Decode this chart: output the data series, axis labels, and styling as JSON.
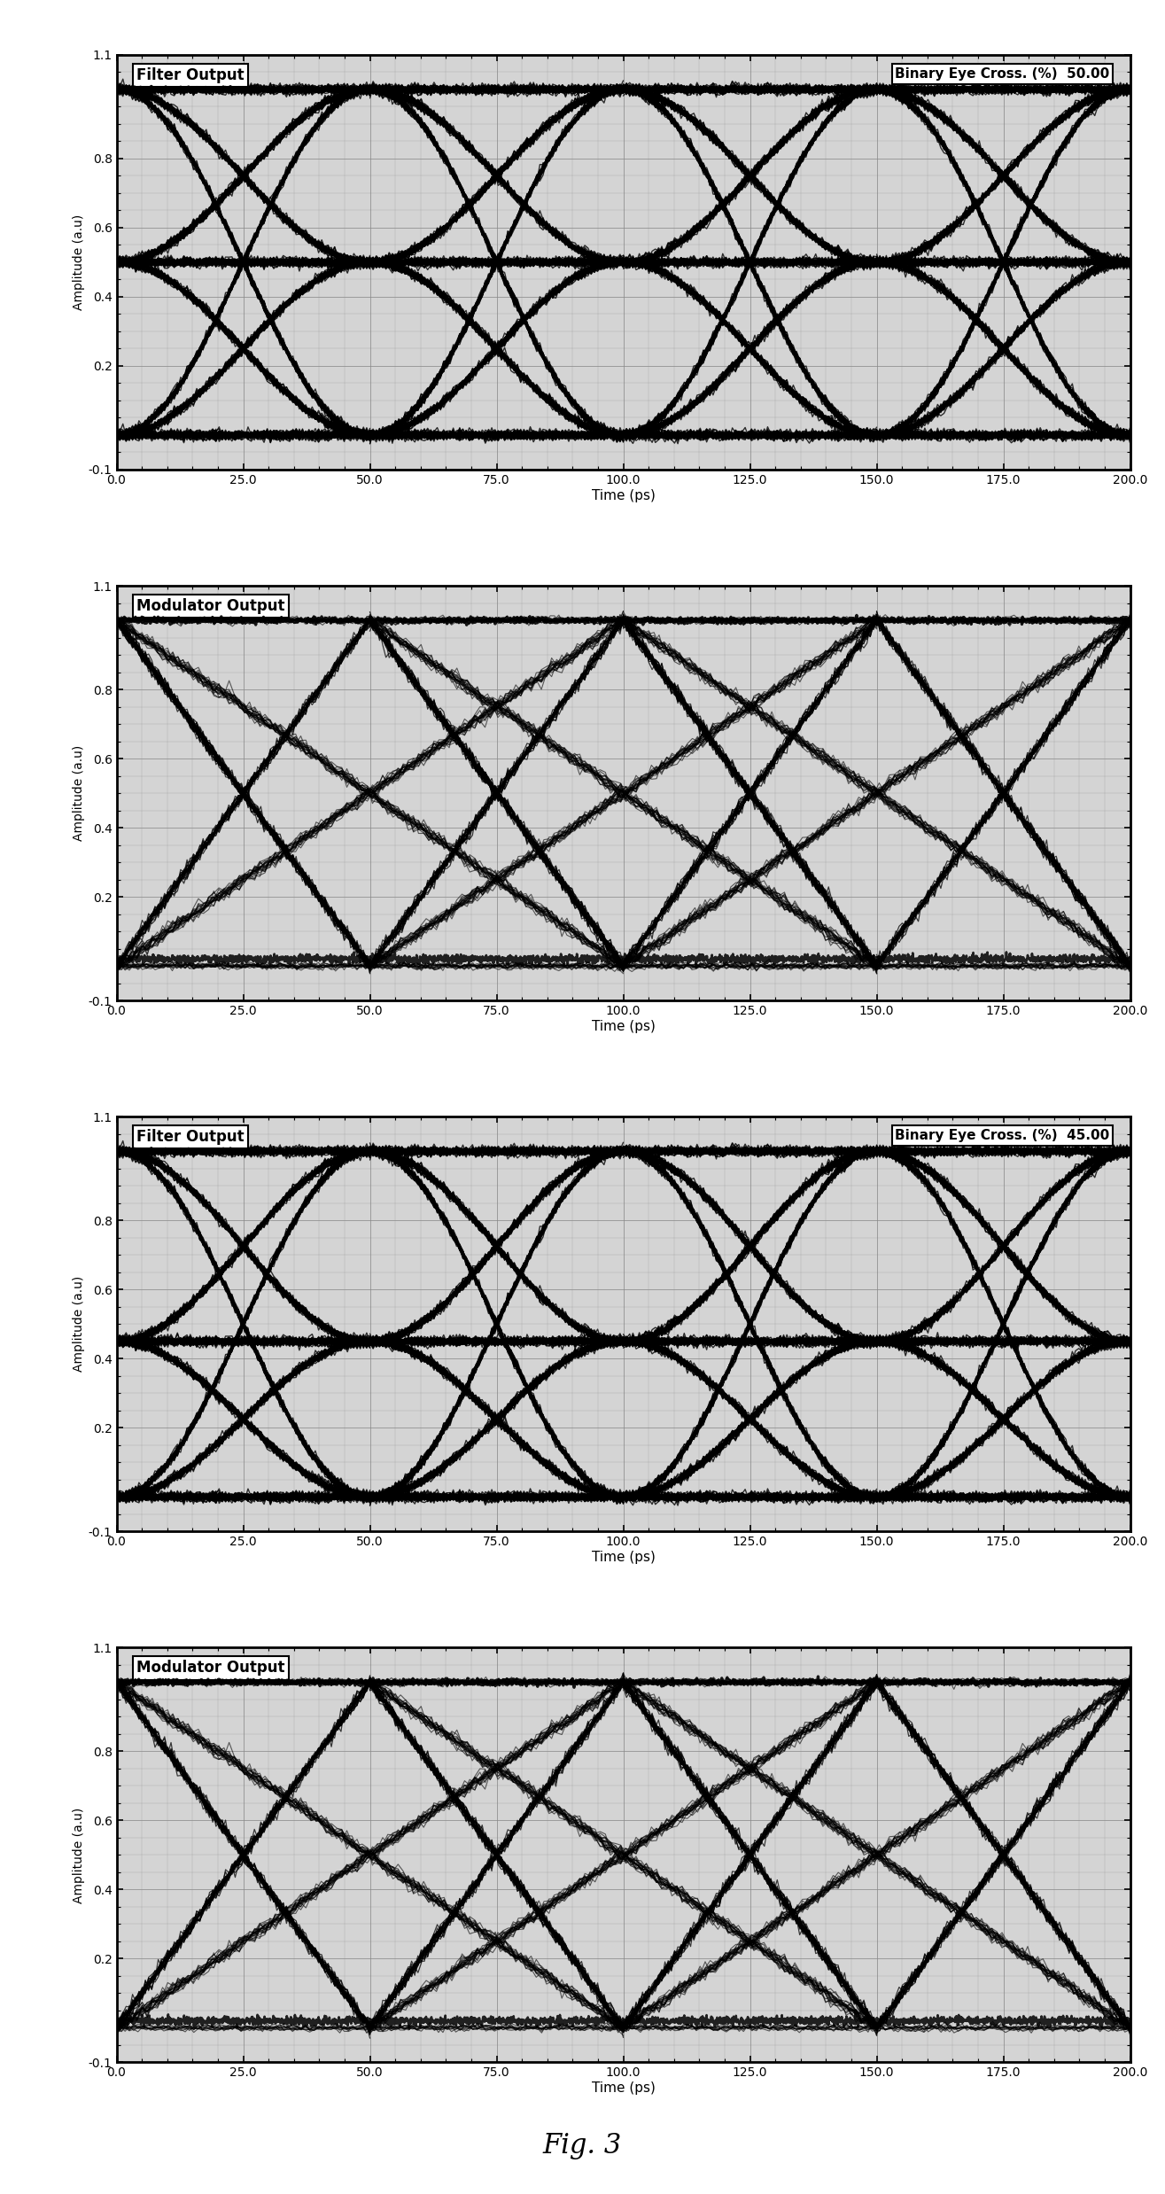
{
  "panels": [
    {
      "title_left": "Filter Output",
      "title_right": "Binary Eye Cross. (%)  50.00",
      "type": "filter_eye",
      "crossing_level": 0.5,
      "ylim": [
        -0.1,
        1.1
      ],
      "xlim": [
        0.0,
        200.0
      ],
      "yticks": [
        -0.1,
        0.2,
        0.4,
        0.6,
        0.8,
        1.1
      ],
      "ytick_labels": [
        "-0.1",
        "0.2",
        "0.4",
        "0.6",
        "0.8",
        "1.1"
      ],
      "xticks": [
        0.0,
        25.0,
        50.0,
        75.0,
        100.0,
        125.0,
        150.0,
        175.0,
        200.0
      ]
    },
    {
      "title_left": "Modulator Output",
      "title_right": "",
      "type": "modulator_eye_50",
      "crossing_level": 0.5,
      "ylim": [
        -0.1,
        1.1
      ],
      "xlim": [
        0.0,
        200.0
      ],
      "yticks": [
        -0.1,
        0.2,
        0.4,
        0.6,
        0.8,
        1.1
      ],
      "ytick_labels": [
        "-0.1",
        "0.2",
        "0.4",
        "0.6",
        "0.8",
        "1.1"
      ],
      "xticks": [
        0.0,
        25.0,
        50.0,
        75.0,
        100.0,
        125.0,
        150.0,
        175.0,
        200.0
      ]
    },
    {
      "title_left": "Filter Output",
      "title_right": "Binary Eye Cross. (%)  45.00",
      "type": "filter_eye",
      "crossing_level": 0.45,
      "ylim": [
        -0.1,
        1.1
      ],
      "xlim": [
        0.0,
        200.0
      ],
      "yticks": [
        -0.1,
        0.2,
        0.4,
        0.6,
        0.8,
        1.1
      ],
      "ytick_labels": [
        "-0.1",
        "0.2",
        "0.4",
        "0.6",
        "0.8",
        "1.1"
      ],
      "xticks": [
        0.0,
        25.0,
        50.0,
        75.0,
        100.0,
        125.0,
        150.0,
        175.0,
        200.0
      ]
    },
    {
      "title_left": "Modulator Output",
      "title_right": "",
      "type": "modulator_eye_45",
      "crossing_level": 0.45,
      "ylim": [
        -0.1,
        1.1
      ],
      "xlim": [
        0.0,
        200.0
      ],
      "yticks": [
        -0.1,
        0.2,
        0.4,
        0.6,
        0.8,
        1.1
      ],
      "ytick_labels": [
        "-0.1",
        "0.2",
        "0.4",
        "0.6",
        "0.8",
        "1.1"
      ],
      "xticks": [
        0.0,
        25.0,
        50.0,
        75.0,
        100.0,
        125.0,
        150.0,
        175.0,
        200.0
      ]
    }
  ],
  "fig_label": "Fig. 3",
  "outer_bg": "#ffffff",
  "plot_bg_color": "#d4d4d4",
  "grid_color": "#888888",
  "line_color": "#000000",
  "xlabel": "Time (ps)",
  "ylabel": "Amplitude (a.u)"
}
